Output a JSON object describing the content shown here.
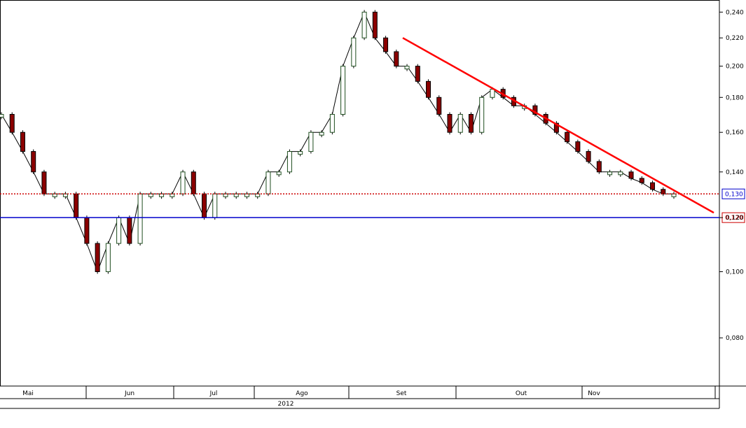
{
  "chart_data": {
    "type": "candlestick",
    "colors": {
      "up_candle": "#1e4d1e",
      "down_candle": "#8b0000",
      "wick": "#000000",
      "trendline": "#ff0000",
      "support_line": "#0000cc",
      "resistance_line": "#cc0000",
      "grid_border": "#000000"
    },
    "y_axis": {
      "scale": "log",
      "ylim": [
        0.068,
        0.25
      ],
      "ticks": [
        "0,080",
        "0,100",
        "0,120",
        "0,140",
        "0,160",
        "0,180",
        "0,200",
        "0,220",
        "0,240"
      ],
      "tick_values": [
        0.08,
        0.1,
        0.12,
        0.14,
        0.16,
        0.18,
        0.2,
        0.22,
        0.24
      ],
      "position": "right"
    },
    "x_axis": {
      "months": [
        "Mai",
        "Jun",
        "Jul",
        "Ago",
        "Set",
        "Out",
        "Nov"
      ],
      "year_label": "2012"
    },
    "horizontal_lines": [
      {
        "value": 0.13,
        "label": "0,130",
        "style": "dotted",
        "color": "#cc0000",
        "label_color": "#0000cc"
      },
      {
        "value": 0.12,
        "label": "0,120",
        "style": "solid",
        "color": "#0000cc",
        "label_color": "#cc0000"
      }
    ],
    "trendline": {
      "from": {
        "month": "Set",
        "y": 0.22
      },
      "to": {
        "month": "Nov",
        "y": 0.122
      }
    },
    "series_points": [
      {
        "y": 0.17
      },
      {
        "y": 0.16
      },
      {
        "y": 0.15
      },
      {
        "y": 0.14
      },
      {
        "y": 0.13
      },
      {
        "y": 0.13
      },
      {
        "y": 0.13
      },
      {
        "y": 0.12
      },
      {
        "y": 0.11
      },
      {
        "y": 0.1
      },
      {
        "y": 0.11
      },
      {
        "y": 0.12
      },
      {
        "y": 0.11
      },
      {
        "y": 0.13
      },
      {
        "y": 0.13
      },
      {
        "y": 0.13
      },
      {
        "y": 0.13
      },
      {
        "y": 0.14
      },
      {
        "y": 0.13
      },
      {
        "y": 0.12
      },
      {
        "y": 0.13
      },
      {
        "y": 0.13
      },
      {
        "y": 0.13
      },
      {
        "y": 0.13
      },
      {
        "y": 0.13
      },
      {
        "y": 0.14
      },
      {
        "y": 0.14
      },
      {
        "y": 0.15
      },
      {
        "y": 0.15
      },
      {
        "y": 0.16
      },
      {
        "y": 0.16
      },
      {
        "y": 0.17
      },
      {
        "y": 0.2
      },
      {
        "y": 0.22
      },
      {
        "y": 0.24
      },
      {
        "y": 0.22
      },
      {
        "y": 0.21
      },
      {
        "y": 0.2
      },
      {
        "y": 0.2
      },
      {
        "y": 0.19
      },
      {
        "y": 0.18
      },
      {
        "y": 0.17
      },
      {
        "y": 0.16
      },
      {
        "y": 0.17
      },
      {
        "y": 0.16
      },
      {
        "y": 0.18
      },
      {
        "y": 0.185
      },
      {
        "y": 0.18
      },
      {
        "y": 0.175
      },
      {
        "y": 0.175
      },
      {
        "y": 0.17
      },
      {
        "y": 0.165
      },
      {
        "y": 0.16
      },
      {
        "y": 0.155
      },
      {
        "y": 0.15
      },
      {
        "y": 0.145
      },
      {
        "y": 0.14
      },
      {
        "y": 0.14
      },
      {
        "y": 0.14
      },
      {
        "y": 0.137
      },
      {
        "y": 0.135
      },
      {
        "y": 0.132
      },
      {
        "y": 0.13
      },
      {
        "y": 0.13
      }
    ]
  }
}
